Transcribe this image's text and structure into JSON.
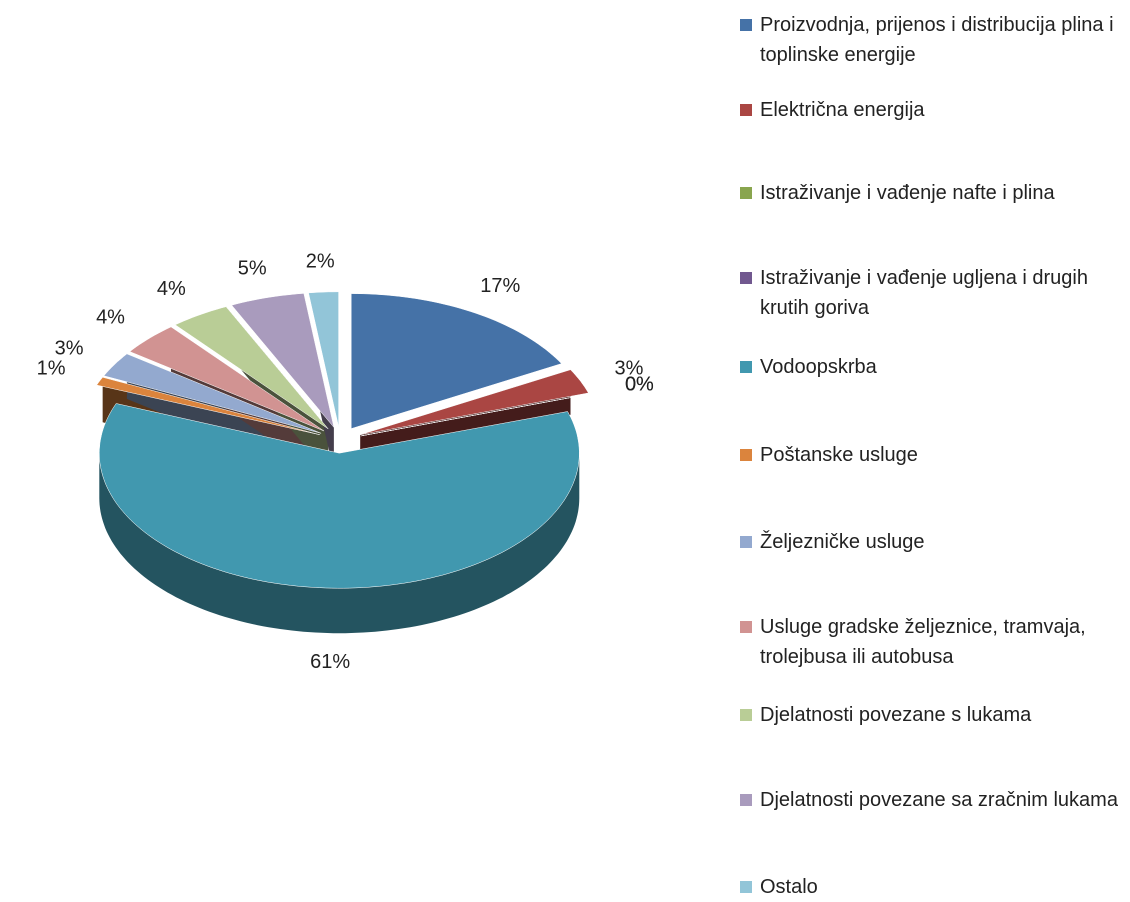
{
  "chart_data": {
    "type": "pie",
    "categories": [
      "Proizvodnja, prijenos i distribucija plina i toplinske energije",
      "Električna energija",
      "Istraživanje i vađenje nafte i plina",
      "Istraživanje i vađenje ugljena i drugih krutih goriva",
      "Vodoopskrba",
      "Poštanske usluge",
      "Željezničke usluge",
      "Usluge gradske željeznice, tramvaja, trolejbusa ili autobusa",
      "Djelatnosti povezane s lukama",
      "Djelatnosti povezane sa zračnim lukama",
      "Ostalo"
    ],
    "values": [
      17,
      3,
      0,
      0,
      61,
      1,
      3,
      4,
      4,
      5,
      2
    ],
    "value_labels": [
      "17%",
      "3%",
      "0%",
      "0%",
      "61%",
      "1%",
      "3%",
      "4%",
      "4%",
      "5%",
      "2%"
    ],
    "colors": [
      "#4572a7",
      "#aa4643",
      "#89a54e",
      "#71588f",
      "#4198af",
      "#db843d",
      "#93a9cf",
      "#d19392",
      "#b9cd96",
      "#a99bbd",
      "#92c5d8"
    ],
    "legend": "right"
  }
}
